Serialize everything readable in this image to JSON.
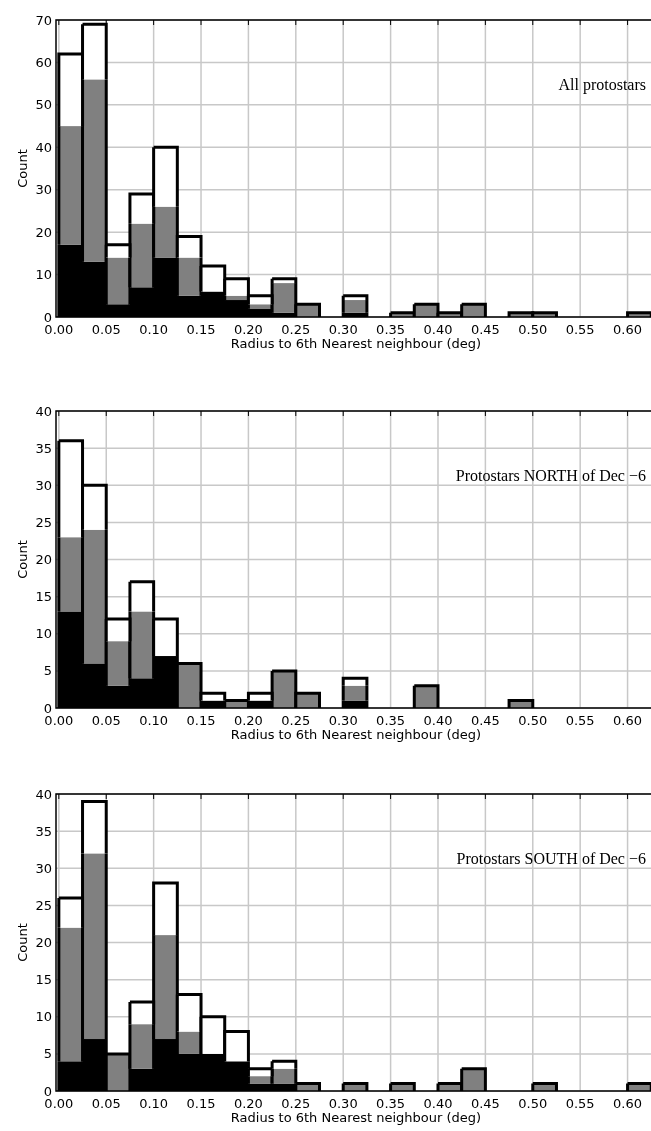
{
  "chart_data": [
    {
      "type": "bar",
      "stacked": true,
      "xlabel": "Radius to 6th Nearest neighbour (deg)",
      "ylabel": "Count",
      "annotations": [
        "All protostars"
      ],
      "grid": true,
      "x": [
        0.0125,
        0.0375,
        0.0625,
        0.0875,
        0.1125,
        0.1375,
        0.1625,
        0.1875,
        0.2125,
        0.2375,
        0.2625,
        0.2875,
        0.3125,
        0.3375,
        0.3625,
        0.3875,
        0.4125,
        0.4375,
        0.4625,
        0.4875,
        0.5125,
        0.5375,
        0.5625,
        0.5875,
        0.6125
      ],
      "xlim": [
        -0.003,
        0.63
      ],
      "ylim": [
        0,
        70
      ],
      "xticks": [
        {
          "value": 0,
          "label": "0.00"
        },
        {
          "value": 0.05,
          "label": "0.05"
        },
        {
          "value": 0.1,
          "label": "0.10"
        },
        {
          "value": 0.15,
          "label": "0.15"
        },
        {
          "value": 0.2,
          "label": "0.20"
        },
        {
          "value": 0.25,
          "label": "0.25"
        },
        {
          "value": 0.3,
          "label": "0.30"
        },
        {
          "value": 0.35,
          "label": "0.35"
        },
        {
          "value": 0.4,
          "label": "0.40"
        },
        {
          "value": 0.45,
          "label": "0.45"
        },
        {
          "value": 0.5,
          "label": "0.50"
        },
        {
          "value": 0.55,
          "label": "0.55"
        },
        {
          "value": 0.6,
          "label": "0.60"
        }
      ],
      "yticks": [
        0,
        10,
        20,
        30,
        40,
        50,
        60,
        70
      ],
      "series": [
        {
          "color": "#000000",
          "values": [
            17,
            13,
            3,
            7,
            14,
            5,
            6,
            4,
            2,
            1,
            0,
            0,
            1,
            0,
            0,
            0,
            0,
            0,
            0,
            0,
            0,
            0,
            0,
            0,
            0
          ]
        },
        {
          "color": "#808080",
          "values": [
            28,
            43,
            11,
            15,
            12,
            9,
            0,
            1,
            1,
            7,
            3,
            0,
            3,
            0,
            1,
            3,
            1,
            3,
            0,
            1,
            1,
            0,
            0,
            0,
            1
          ]
        },
        {
          "color": "#ffffff",
          "values": [
            17,
            13,
            3,
            7,
            14,
            5,
            6,
            4,
            2,
            1,
            0,
            0,
            1,
            0,
            0,
            0,
            0,
            0,
            0,
            0,
            0,
            0,
            0,
            0,
            0
          ]
        }
      ]
    },
    {
      "type": "bar",
      "stacked": true,
      "xlabel": "Radius to 6th Nearest neighbour (deg)",
      "ylabel": "Count",
      "annotations": [
        "Protostars NORTH of Dec −6"
      ],
      "grid": true,
      "x": [
        0.0125,
        0.0375,
        0.0625,
        0.0875,
        0.1125,
        0.1375,
        0.1625,
        0.1875,
        0.2125,
        0.2375,
        0.2625,
        0.2875,
        0.3125,
        0.3375,
        0.3625,
        0.3875,
        0.4125,
        0.4375,
        0.4625,
        0.4875,
        0.5125,
        0.5375,
        0.5625,
        0.5875,
        0.6125
      ],
      "xlim": [
        -0.003,
        0.63
      ],
      "ylim": [
        0,
        40
      ],
      "xticks": [
        {
          "value": 0,
          "label": "0.00"
        },
        {
          "value": 0.05,
          "label": "0.05"
        },
        {
          "value": 0.1,
          "label": "0.10"
        },
        {
          "value": 0.15,
          "label": "0.15"
        },
        {
          "value": 0.2,
          "label": "0.20"
        },
        {
          "value": 0.25,
          "label": "0.25"
        },
        {
          "value": 0.3,
          "label": "0.30"
        },
        {
          "value": 0.35,
          "label": "0.35"
        },
        {
          "value": 0.4,
          "label": "0.40"
        },
        {
          "value": 0.45,
          "label": "0.45"
        },
        {
          "value": 0.5,
          "label": "0.50"
        },
        {
          "value": 0.55,
          "label": "0.55"
        },
        {
          "value": 0.6,
          "label": "0.60"
        }
      ],
      "yticks": [
        0,
        5,
        10,
        15,
        20,
        25,
        30,
        35,
        40
      ],
      "series": [
        {
          "color": "#000000",
          "values": [
            13,
            6,
            3,
            4,
            7,
            0,
            1,
            0,
            1,
            0,
            0,
            0,
            1,
            0,
            0,
            0,
            0,
            0,
            0,
            0,
            0,
            0,
            0,
            0,
            0
          ]
        },
        {
          "color": "#808080",
          "values": [
            10,
            18,
            6,
            9,
            0,
            6,
            0,
            1,
            0,
            5,
            2,
            0,
            2,
            0,
            0,
            3,
            0,
            0,
            0,
            1,
            0,
            0,
            0,
            0,
            0
          ]
        },
        {
          "color": "#ffffff",
          "values": [
            13,
            6,
            3,
            4,
            5,
            0,
            1,
            0,
            1,
            0,
            0,
            0,
            1,
            0,
            0,
            0,
            0,
            0,
            0,
            0,
            0,
            0,
            0,
            0,
            0
          ]
        }
      ]
    },
    {
      "type": "bar",
      "stacked": true,
      "xlabel": "Radius to 6th Nearest neighbour (deg)",
      "ylabel": "Count",
      "annotations": [
        "Protostars SOUTH of Dec −6"
      ],
      "grid": true,
      "x": [
        0.0125,
        0.0375,
        0.0625,
        0.0875,
        0.1125,
        0.1375,
        0.1625,
        0.1875,
        0.2125,
        0.2375,
        0.2625,
        0.2875,
        0.3125,
        0.3375,
        0.3625,
        0.3875,
        0.4125,
        0.4375,
        0.4625,
        0.4875,
        0.5125,
        0.5375,
        0.5625,
        0.5875,
        0.6125
      ],
      "xlim": [
        -0.003,
        0.63
      ],
      "ylim": [
        0,
        40
      ],
      "xticks": [
        {
          "value": 0,
          "label": "0.00"
        },
        {
          "value": 0.05,
          "label": "0.05"
        },
        {
          "value": 0.1,
          "label": "0.10"
        },
        {
          "value": 0.15,
          "label": "0.15"
        },
        {
          "value": 0.2,
          "label": "0.20"
        },
        {
          "value": 0.25,
          "label": "0.25"
        },
        {
          "value": 0.3,
          "label": "0.30"
        },
        {
          "value": 0.35,
          "label": "0.35"
        },
        {
          "value": 0.4,
          "label": "0.40"
        },
        {
          "value": 0.45,
          "label": "0.45"
        },
        {
          "value": 0.5,
          "label": "0.50"
        },
        {
          "value": 0.55,
          "label": "0.55"
        },
        {
          "value": 0.6,
          "label": "0.60"
        }
      ],
      "yticks": [
        0,
        5,
        10,
        15,
        20,
        25,
        30,
        35,
        40
      ],
      "series": [
        {
          "color": "#000000",
          "values": [
            4,
            7,
            0,
            3,
            7,
            5,
            5,
            4,
            1,
            1,
            0,
            0,
            0,
            0,
            0,
            0,
            0,
            0,
            0,
            0,
            0,
            0,
            0,
            0,
            0
          ]
        },
        {
          "color": "#808080",
          "values": [
            18,
            25,
            5,
            6,
            14,
            3,
            0,
            0,
            1,
            2,
            1,
            0,
            1,
            0,
            1,
            0,
            1,
            3,
            0,
            0,
            1,
            0,
            0,
            0,
            1
          ]
        },
        {
          "color": "#ffffff",
          "values": [
            4,
            7,
            0,
            3,
            7,
            5,
            5,
            4,
            1,
            1,
            0,
            0,
            0,
            0,
            0,
            0,
            0,
            0,
            0,
            0,
            0,
            0,
            0,
            0,
            0
          ]
        }
      ]
    }
  ]
}
